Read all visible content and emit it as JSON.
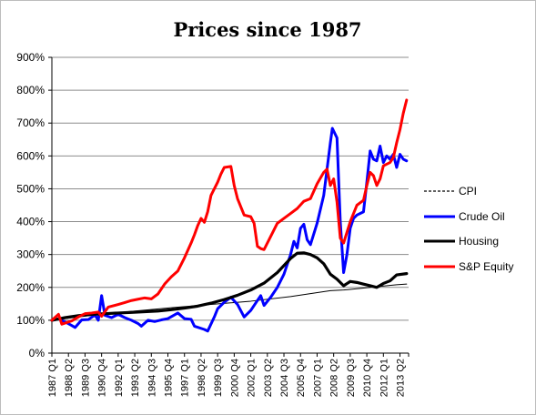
{
  "chart_data": {
    "type": "line",
    "title": "Prices since 1987",
    "xlabel": "",
    "ylabel": "",
    "ylim": [
      0,
      900
    ],
    "y_tick_labels": [
      "0%",
      "100%",
      "200%",
      "300%",
      "400%",
      "500%",
      "600%",
      "700%",
      "800%",
      "900%"
    ],
    "x_tick_labels": [
      "1987 Q1",
      "1988 Q2",
      "1989 Q3",
      "1990 Q4",
      "1992 Q1",
      "1993 Q2",
      "1994 Q3",
      "1995 Q4",
      "1997 Q1",
      "1998 Q2",
      "1999 Q3",
      "2000 Q4",
      "2002 Q1",
      "2003 Q2",
      "2004 Q3",
      "2005 Q4",
      "2007 Q1",
      "2008 Q2",
      "2009 Q3",
      "2010 Q4",
      "2012 Q1",
      "2013 Q2"
    ],
    "grid": true,
    "legend_position": "right",
    "x_unit": "year",
    "series": [
      {
        "name": "CPI",
        "color": "#000000",
        "style": "dashed",
        "points": [
          [
            1987.0,
            100
          ],
          [
            1990.0,
            115
          ],
          [
            1993.0,
            127
          ],
          [
            1996.0,
            138
          ],
          [
            1999.0,
            148
          ],
          [
            2002.0,
            158
          ],
          [
            2005.0,
            172
          ],
          [
            2008.0,
            190
          ],
          [
            2009.0,
            192
          ],
          [
            2011.0,
            200
          ],
          [
            2013.0,
            208
          ],
          [
            2013.75,
            210
          ]
        ]
      },
      {
        "name": "Crude Oil",
        "color": "#0000ff",
        "style": "solid",
        "points": [
          [
            1987.0,
            100
          ],
          [
            1987.5,
            104
          ],
          [
            1988.0,
            95
          ],
          [
            1988.5,
            84
          ],
          [
            1988.75,
            78
          ],
          [
            1989.25,
            101
          ],
          [
            1989.75,
            102
          ],
          [
            1990.25,
            116
          ],
          [
            1990.5,
            100
          ],
          [
            1990.75,
            175
          ],
          [
            1991.0,
            115
          ],
          [
            1991.5,
            108
          ],
          [
            1992.0,
            118
          ],
          [
            1992.5,
            108
          ],
          [
            1993.0,
            100
          ],
          [
            1993.5,
            90
          ],
          [
            1993.75,
            82
          ],
          [
            1994.25,
            100
          ],
          [
            1994.75,
            96
          ],
          [
            1995.25,
            101
          ],
          [
            1995.75,
            105
          ],
          [
            1996.5,
            122
          ],
          [
            1997.0,
            105
          ],
          [
            1997.5,
            103
          ],
          [
            1997.75,
            82
          ],
          [
            1998.5,
            72
          ],
          [
            1998.75,
            67
          ],
          [
            1999.25,
            110
          ],
          [
            1999.5,
            135
          ],
          [
            2000.0,
            155
          ],
          [
            2000.5,
            170
          ],
          [
            2001.0,
            148
          ],
          [
            2001.5,
            110
          ],
          [
            2002.0,
            130
          ],
          [
            2002.5,
            160
          ],
          [
            2002.75,
            175
          ],
          [
            2003.0,
            145
          ],
          [
            2003.5,
            170
          ],
          [
            2004.0,
            200
          ],
          [
            2004.5,
            240
          ],
          [
            2005.0,
            300
          ],
          [
            2005.25,
            340
          ],
          [
            2005.5,
            320
          ],
          [
            2005.75,
            380
          ],
          [
            2006.0,
            392
          ],
          [
            2006.25,
            345
          ],
          [
            2006.5,
            330
          ],
          [
            2007.0,
            395
          ],
          [
            2007.5,
            480
          ],
          [
            2008.0,
            640
          ],
          [
            2008.15,
            684
          ],
          [
            2008.5,
            655
          ],
          [
            2008.75,
            400
          ],
          [
            2009.0,
            245
          ],
          [
            2009.25,
            300
          ],
          [
            2009.5,
            380
          ],
          [
            2009.75,
            410
          ],
          [
            2010.0,
            420
          ],
          [
            2010.5,
            430
          ],
          [
            2010.75,
            520
          ],
          [
            2011.0,
            615
          ],
          [
            2011.25,
            590
          ],
          [
            2011.5,
            585
          ],
          [
            2011.75,
            630
          ],
          [
            2012.0,
            580
          ],
          [
            2012.25,
            600
          ],
          [
            2012.5,
            590
          ],
          [
            2012.75,
            605
          ],
          [
            2013.0,
            565
          ],
          [
            2013.25,
            605
          ],
          [
            2013.5,
            590
          ],
          [
            2013.75,
            585
          ]
        ]
      },
      {
        "name": "Housing",
        "color": "#000000",
        "style": "solid-thick",
        "points": [
          [
            1987.0,
            100
          ],
          [
            1988.0,
            108
          ],
          [
            1989.0,
            114
          ],
          [
            1990.0,
            118
          ],
          [
            1991.0,
            120
          ],
          [
            1992.0,
            122
          ],
          [
            1993.0,
            124
          ],
          [
            1994.0,
            126
          ],
          [
            1995.0,
            128
          ],
          [
            1996.0,
            132
          ],
          [
            1997.0,
            137
          ],
          [
            1998.0,
            143
          ],
          [
            1999.0,
            152
          ],
          [
            2000.0,
            163
          ],
          [
            2001.0,
            176
          ],
          [
            2002.0,
            192
          ],
          [
            2003.0,
            213
          ],
          [
            2004.0,
            245
          ],
          [
            2005.0,
            288
          ],
          [
            2005.5,
            304
          ],
          [
            2006.0,
            305
          ],
          [
            2006.5,
            300
          ],
          [
            2007.0,
            290
          ],
          [
            2007.5,
            272
          ],
          [
            2008.0,
            240
          ],
          [
            2008.5,
            225
          ],
          [
            2009.0,
            205
          ],
          [
            2009.5,
            218
          ],
          [
            2010.0,
            215
          ],
          [
            2010.5,
            210
          ],
          [
            2011.0,
            205
          ],
          [
            2011.5,
            200
          ],
          [
            2012.0,
            212
          ],
          [
            2012.5,
            220
          ],
          [
            2013.0,
            238
          ],
          [
            2013.75,
            242
          ]
        ]
      },
      {
        "name": "S&P Equity",
        "color": "#ff0000",
        "style": "solid",
        "points": [
          [
            1987.0,
            100
          ],
          [
            1987.5,
            118
          ],
          [
            1987.75,
            88
          ],
          [
            1988.5,
            98
          ],
          [
            1989.0,
            110
          ],
          [
            1989.5,
            120
          ],
          [
            1990.0,
            122
          ],
          [
            1990.5,
            125
          ],
          [
            1990.75,
            112
          ],
          [
            1991.25,
            140
          ],
          [
            1992.0,
            148
          ],
          [
            1992.5,
            154
          ],
          [
            1993.0,
            160
          ],
          [
            1993.5,
            164
          ],
          [
            1994.0,
            168
          ],
          [
            1994.5,
            165
          ],
          [
            1995.0,
            180
          ],
          [
            1995.5,
            210
          ],
          [
            1996.0,
            232
          ],
          [
            1996.5,
            250
          ],
          [
            1997.0,
            290
          ],
          [
            1997.5,
            335
          ],
          [
            1997.75,
            360
          ],
          [
            1998.0,
            388
          ],
          [
            1998.25,
            410
          ],
          [
            1998.5,
            398
          ],
          [
            1998.75,
            430
          ],
          [
            1999.0,
            480
          ],
          [
            1999.5,
            520
          ],
          [
            1999.75,
            545
          ],
          [
            2000.0,
            565
          ],
          [
            2000.5,
            568
          ],
          [
            2000.75,
            510
          ],
          [
            2001.0,
            470
          ],
          [
            2001.5,
            420
          ],
          [
            2002.0,
            415
          ],
          [
            2002.25,
            395
          ],
          [
            2002.5,
            325
          ],
          [
            2002.75,
            318
          ],
          [
            2003.0,
            315
          ],
          [
            2003.5,
            355
          ],
          [
            2004.0,
            395
          ],
          [
            2004.5,
            410
          ],
          [
            2005.0,
            425
          ],
          [
            2005.5,
            440
          ],
          [
            2006.0,
            462
          ],
          [
            2006.5,
            470
          ],
          [
            2007.0,
            515
          ],
          [
            2007.5,
            550
          ],
          [
            2007.75,
            560
          ],
          [
            2008.0,
            510
          ],
          [
            2008.25,
            530
          ],
          [
            2008.5,
            460
          ],
          [
            2008.75,
            350
          ],
          [
            2009.0,
            335
          ],
          [
            2009.5,
            400
          ],
          [
            2010.0,
            450
          ],
          [
            2010.5,
            465
          ],
          [
            2010.75,
            510
          ],
          [
            2011.0,
            550
          ],
          [
            2011.25,
            540
          ],
          [
            2011.5,
            510
          ],
          [
            2011.75,
            530
          ],
          [
            2012.0,
            570
          ],
          [
            2012.5,
            580
          ],
          [
            2012.75,
            595
          ],
          [
            2013.0,
            640
          ],
          [
            2013.25,
            680
          ],
          [
            2013.5,
            730
          ],
          [
            2013.75,
            770
          ]
        ]
      }
    ]
  }
}
